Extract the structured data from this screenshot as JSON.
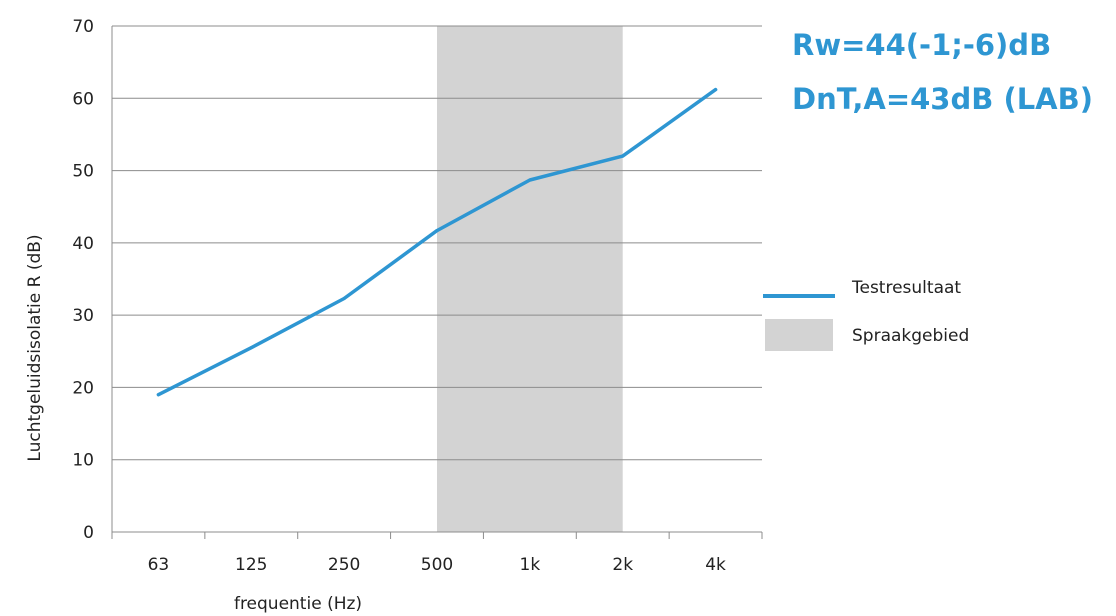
{
  "chart_data": {
    "type": "line",
    "categories": [
      "63",
      "125",
      "250",
      "500",
      "1k",
      "2k",
      "4k"
    ],
    "series": [
      {
        "name": "Testresultaat",
        "values": [
          19,
          25.5,
          32.3,
          41.7,
          48.7,
          52,
          61.2
        ],
        "color": "#2e96d2"
      }
    ],
    "band": {
      "name": "Spraakgebied",
      "from": "500",
      "to": "2k",
      "color": "#d3d3d3"
    },
    "xlabel": "frequentie  (Hz)",
    "ylabel": "Luchtgeluidsisolatie  R (dB)",
    "ylim": [
      0,
      70
    ],
    "yticks": [
      0,
      10,
      20,
      30,
      40,
      50,
      60,
      70
    ],
    "grid": true,
    "legend_position": "right",
    "annotations": [
      {
        "text": "Rw=44(-1;-6)dB",
        "color": "#2e96d2"
      },
      {
        "text": "DnT,A=43dB (LAB)",
        "color": "#2e96d2"
      }
    ]
  }
}
